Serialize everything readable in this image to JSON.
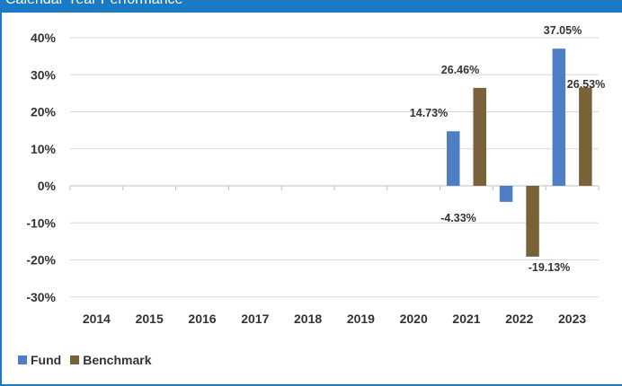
{
  "header": {
    "title": "Calendar Year Performance"
  },
  "chart_data": {
    "type": "bar",
    "categories": [
      "2014",
      "2015",
      "2016",
      "2017",
      "2018",
      "2019",
      "2020",
      "2021",
      "2022",
      "2023"
    ],
    "series": [
      {
        "name": "Fund",
        "color": "#4e7fc4",
        "values": [
          null,
          null,
          null,
          null,
          null,
          null,
          null,
          14.73,
          -4.33,
          37.05
        ]
      },
      {
        "name": "Benchmark",
        "color": "#7a6238",
        "values": [
          null,
          null,
          null,
          null,
          null,
          null,
          null,
          26.46,
          -19.13,
          26.53
        ]
      }
    ],
    "data_labels": {
      "Fund": [
        "",
        "",
        "",
        "",
        "",
        "",
        "",
        "14.73%",
        "-4.33%",
        "37.05%"
      ],
      "Benchmark": [
        "",
        "",
        "",
        "",
        "",
        "",
        "",
        "26.46%",
        "-19.13%",
        "26.53%"
      ]
    },
    "y_ticks": [
      "40%",
      "30%",
      "20%",
      "10%",
      "0%",
      "-10%",
      "-20%",
      "-30%"
    ],
    "y_tick_values": [
      40,
      30,
      20,
      10,
      0,
      -10,
      -20,
      -30
    ],
    "ylim": [
      -30,
      40
    ],
    "grid": true,
    "legend": "bottom-left",
    "title": "",
    "xlabel": "",
    "ylabel": ""
  }
}
